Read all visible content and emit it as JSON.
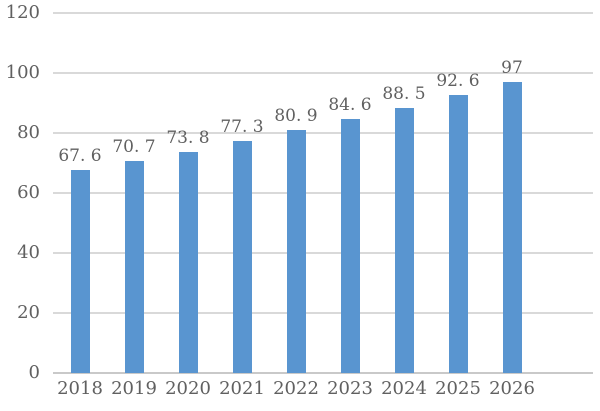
{
  "chart_data": {
    "type": "bar",
    "title": "",
    "xlabel": "",
    "ylabel": "",
    "categories": [
      "2018",
      "2019",
      "2020",
      "2021",
      "2022",
      "2023",
      "2024",
      "2025",
      "2026"
    ],
    "values": [
      67.6,
      70.7,
      73.8,
      77.3,
      80.9,
      84.6,
      88.5,
      92.6,
      97
    ],
    "value_labels": [
      "67. 6",
      "70. 7",
      "73. 8",
      "77. 3",
      "80. 9",
      "84. 6",
      "88. 5",
      "92. 6",
      "97"
    ],
    "yticks": [
      0,
      20,
      40,
      60,
      80,
      100,
      120
    ],
    "ylim": [
      0,
      120
    ],
    "grid": "horizontal-only",
    "gridlines_behind_bars": true,
    "legend": "none",
    "colors": {
      "bar": "#5995D0",
      "gridline": "#D9D9D9",
      "axis_line": "#C9C9C9",
      "text": "#606060",
      "background": "#FFFFFF"
    }
  }
}
